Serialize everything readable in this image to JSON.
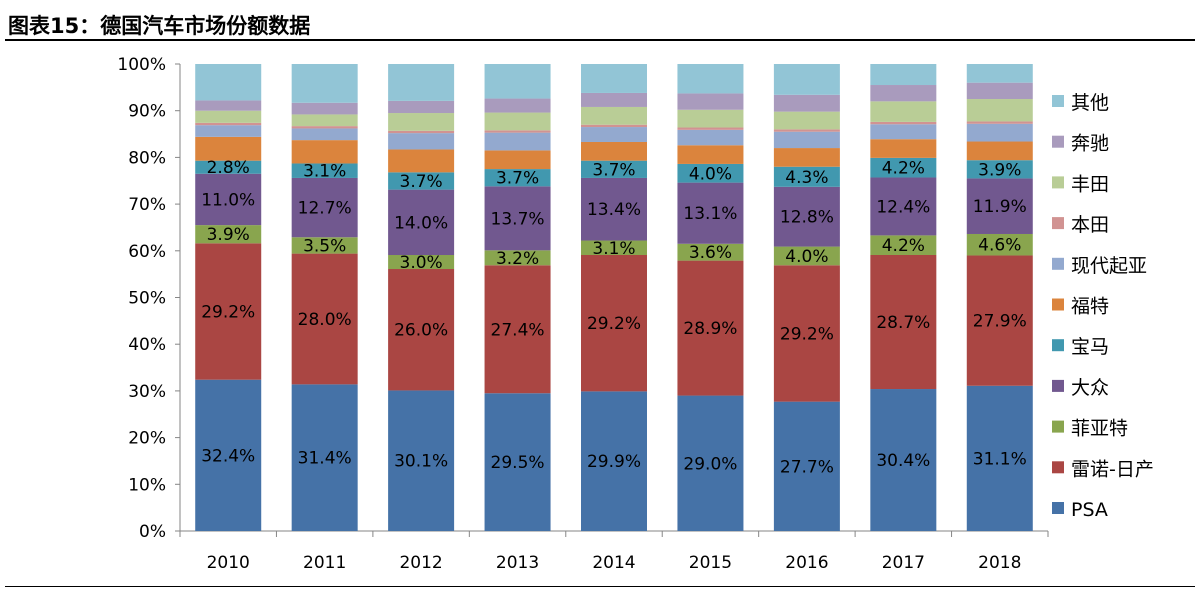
{
  "title": "图表15：德国汽车市场份额数据",
  "colors": {
    "PSA": "#4572a7",
    "雷诺-日产": "#aa4643",
    "菲亚特": "#89a54e",
    "大众": "#71588f",
    "宝马": "#4198af",
    "福特": "#db843d",
    "现代起亚": "#93a9cf",
    "本田": "#d19392",
    "丰田": "#b9cd96",
    "奔驰": "#a99bbd",
    "其他": "#92c5d6"
  },
  "chart_data": {
    "type": "bar",
    "stacked": true,
    "categories": [
      "2010",
      "2011",
      "2012",
      "2013",
      "2014",
      "2015",
      "2016",
      "2017",
      "2018"
    ],
    "ylim": [
      0,
      100
    ],
    "yticks": [
      "0%",
      "10%",
      "20%",
      "30%",
      "40%",
      "50%",
      "60%",
      "70%",
      "80%",
      "90%",
      "100%"
    ],
    "legend_position": "right",
    "series": [
      {
        "name": "PSA",
        "values": [
          32.4,
          31.4,
          30.1,
          29.5,
          29.9,
          29.0,
          27.7,
          30.4,
          31.1
        ],
        "labels": [
          "32.4%",
          "31.4%",
          "30.1%",
          "29.5%",
          "29.9%",
          "29.0%",
          "27.7%",
          "30.4%",
          "31.1%"
        ]
      },
      {
        "name": "雷诺-日产",
        "values": [
          29.2,
          28.0,
          26.0,
          27.4,
          29.2,
          28.9,
          29.2,
          28.7,
          27.9
        ],
        "labels": [
          "29.2%",
          "28.0%",
          "26.0%",
          "27.4%",
          "29.2%",
          "28.9%",
          "29.2%",
          "28.7%",
          "27.9%"
        ]
      },
      {
        "name": "菲亚特",
        "values": [
          3.9,
          3.5,
          3.0,
          3.2,
          3.1,
          3.6,
          4.0,
          4.2,
          4.6
        ],
        "labels": [
          "3.9%",
          "3.5%",
          "3.0%",
          "3.2%",
          "3.1%",
          "3.6%",
          "4.0%",
          "4.2%",
          "4.6%"
        ]
      },
      {
        "name": "大众",
        "values": [
          11.0,
          12.7,
          14.0,
          13.7,
          13.4,
          13.1,
          12.8,
          12.4,
          11.9
        ],
        "labels": [
          "11.0%",
          "12.7%",
          "14.0%",
          "13.7%",
          "13.4%",
          "13.1%",
          "12.8%",
          "12.4%",
          "11.9%"
        ]
      },
      {
        "name": "宝马",
        "values": [
          2.8,
          3.1,
          3.7,
          3.7,
          3.7,
          4.0,
          4.3,
          4.2,
          3.9
        ],
        "labels": [
          "2.8%",
          "3.1%",
          "3.7%",
          "3.7%",
          "3.7%",
          "4.0%",
          "4.3%",
          "4.2%",
          "3.9%"
        ]
      },
      {
        "name": "福特",
        "values": [
          5.1,
          5.0,
          4.9,
          4.0,
          4.0,
          4.0,
          4.0,
          4.0,
          4.0
        ]
      },
      {
        "name": "现代起亚",
        "values": [
          2.5,
          2.5,
          3.5,
          3.8,
          3.2,
          3.3,
          3.5,
          3.2,
          3.8
        ]
      },
      {
        "name": "本田",
        "values": [
          0.5,
          0.5,
          0.5,
          0.5,
          0.5,
          0.5,
          0.5,
          0.5,
          0.5
        ]
      },
      {
        "name": "丰田",
        "values": [
          2.6,
          2.5,
          3.8,
          3.8,
          3.8,
          3.8,
          3.8,
          4.4,
          4.8
        ]
      },
      {
        "name": "奔驰",
        "values": [
          2.2,
          2.5,
          2.6,
          3.0,
          3.0,
          3.5,
          3.6,
          3.5,
          3.5
        ]
      },
      {
        "name": "其他",
        "values": [
          7.8,
          8.3,
          7.9,
          7.4,
          6.2,
          6.3,
          6.6,
          4.5,
          4.0
        ]
      }
    ]
  }
}
